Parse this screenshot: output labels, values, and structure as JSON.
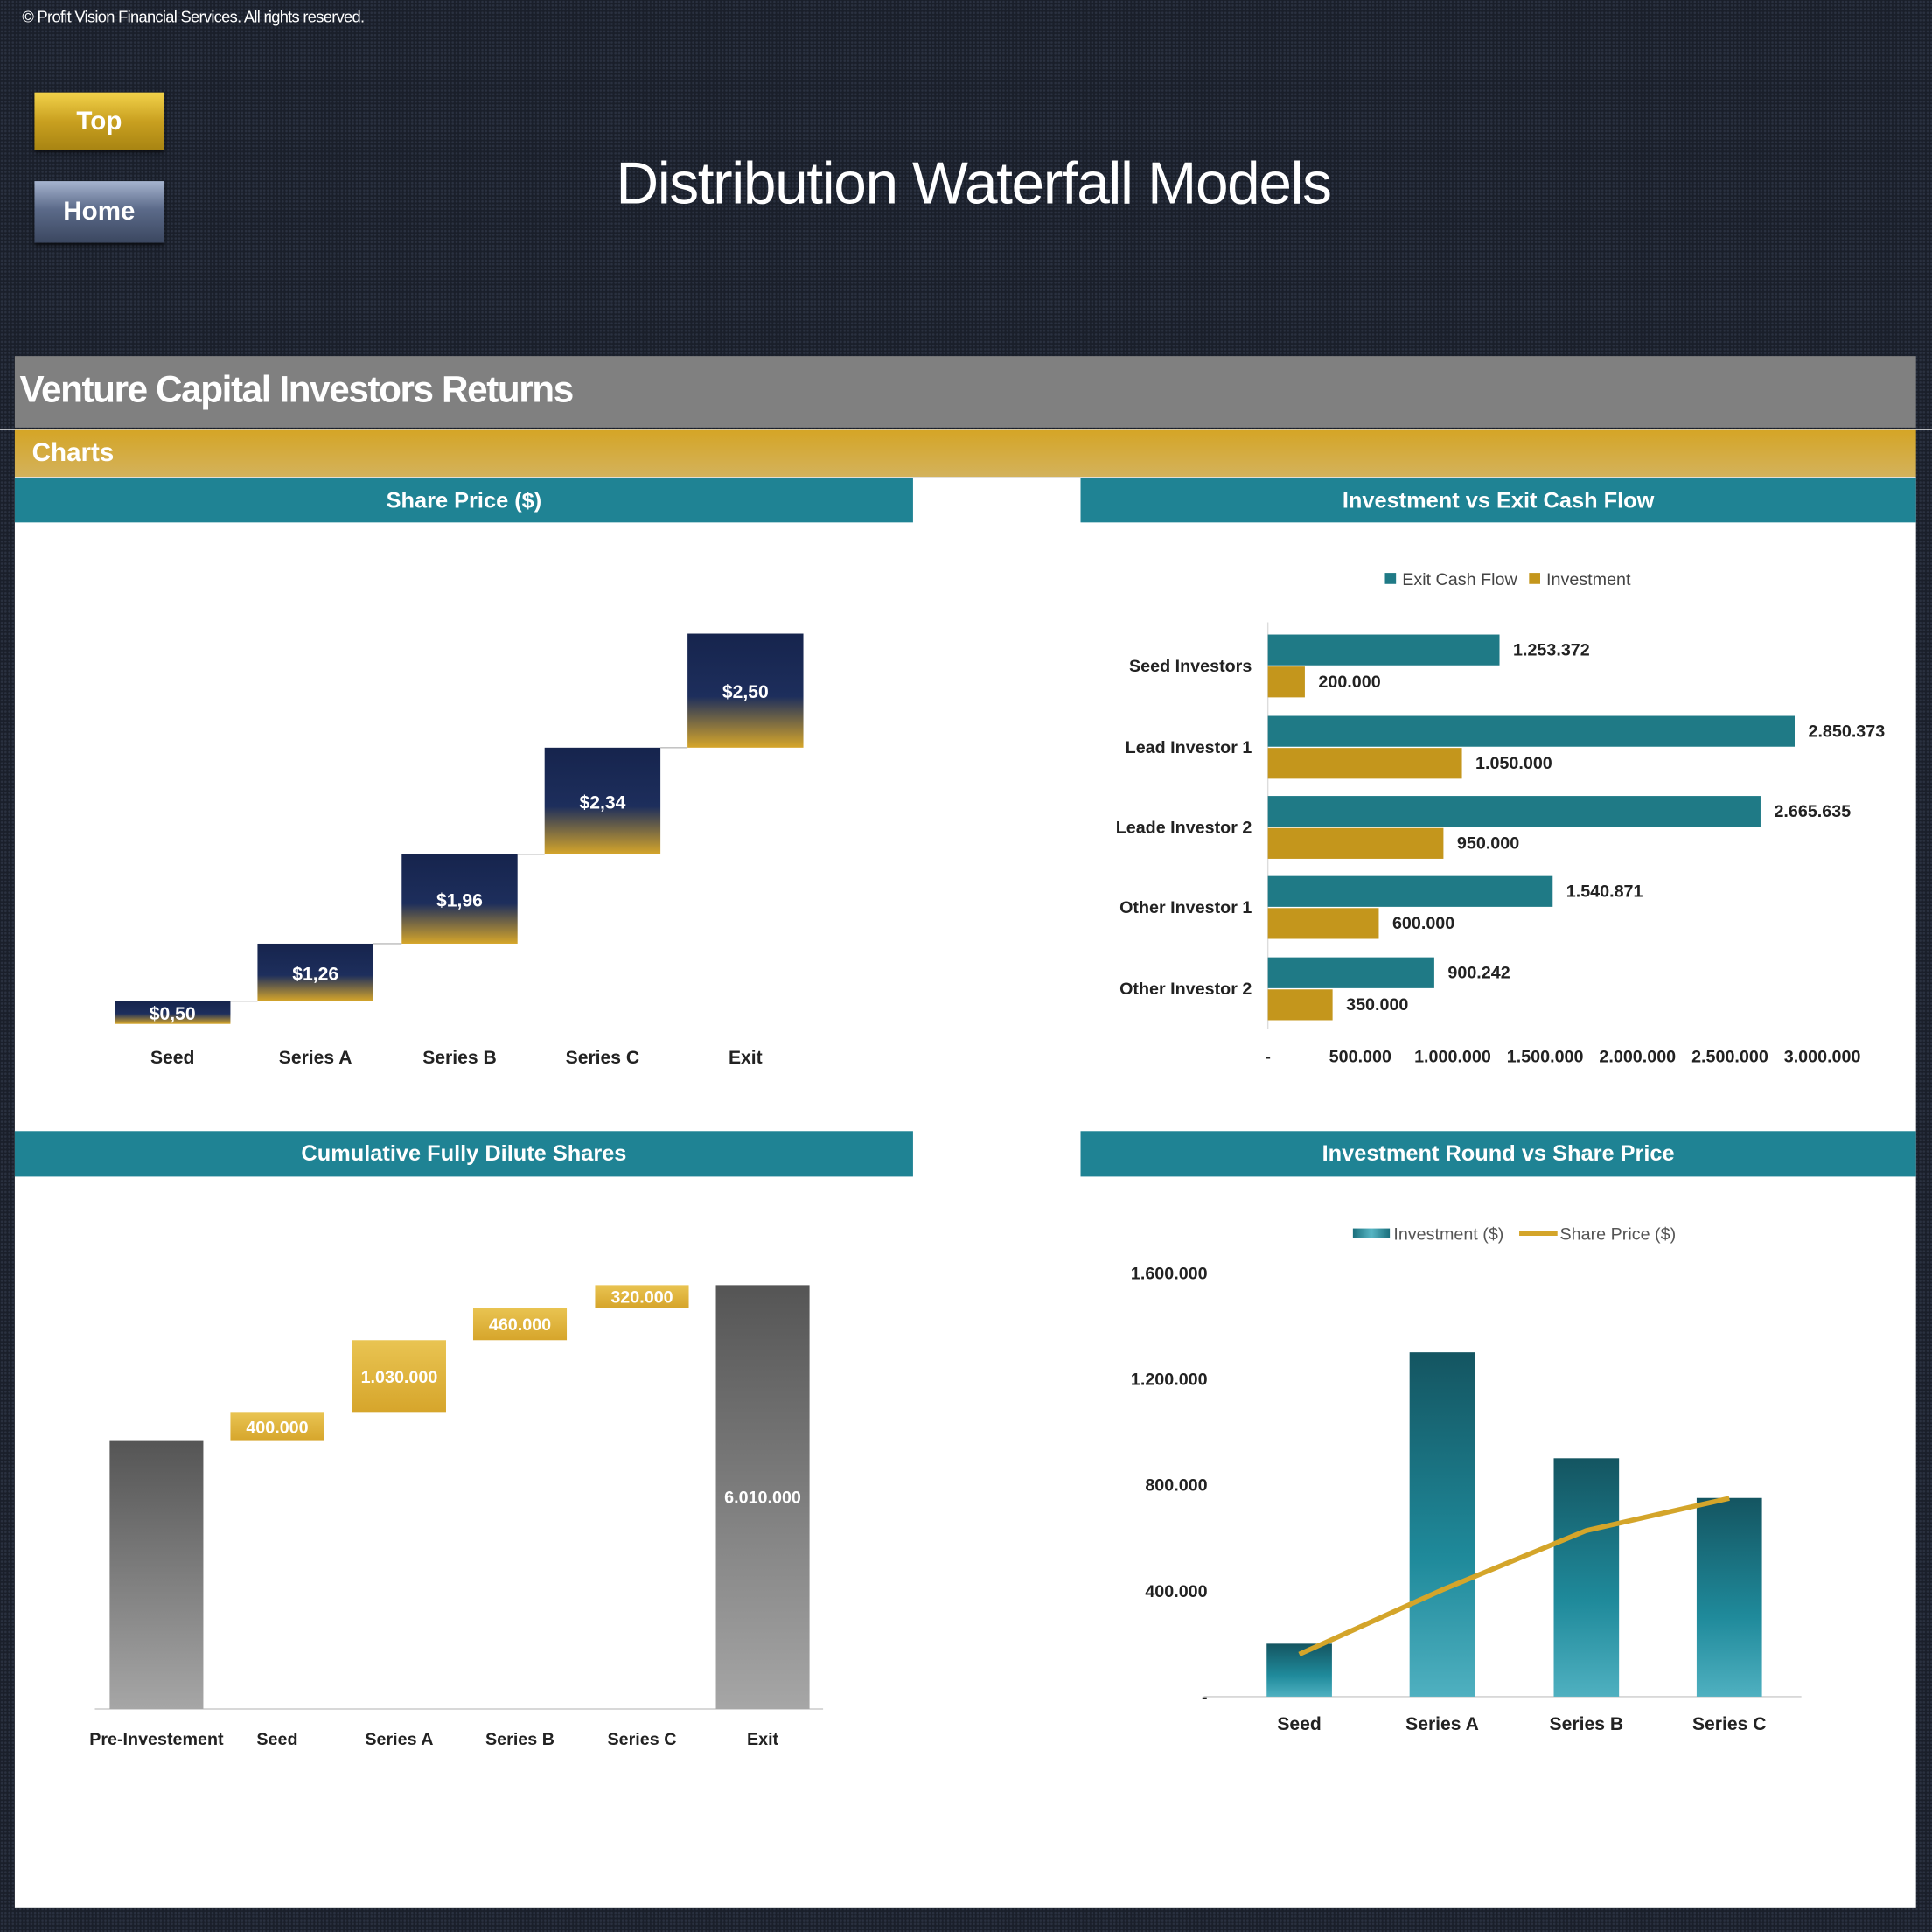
{
  "header": {
    "copyright": "© Profit Vision Financial Services. All rights reserved.",
    "title": "Distribution Waterfall Models",
    "top_button": "Top",
    "home_button": "Home"
  },
  "section": {
    "title": "Venture Capital Investors Returns",
    "subtitle": "Charts"
  },
  "colors": {
    "teal": "#1f8394",
    "gold": "#d4a52a",
    "navy": "#1b2a55",
    "gray": "#808080"
  },
  "chart_data": [
    {
      "type": "waterfall",
      "title": "Share Price ($)",
      "categories": [
        "Seed",
        "Series A",
        "Series B",
        "Series C",
        "Exit"
      ],
      "values": [
        0.5,
        1.26,
        1.96,
        2.34,
        2.5
      ],
      "labels": [
        "$0,50",
        "$1,26",
        "$1,96",
        "$2,34",
        "$2,50"
      ],
      "grid": false
    },
    {
      "type": "bar",
      "orientation": "horizontal",
      "title": "Investment vs Exit Cash Flow",
      "categories": [
        "Seed Investors",
        "Lead Investor 1",
        "Leade Investor 2",
        "Other Investor 1",
        "Other Investor 2"
      ],
      "series": [
        {
          "name": "Exit Cash Flow",
          "color": "#1f7a86",
          "values": [
            1253372,
            2850373,
            2665635,
            1540871,
            900242
          ],
          "labels": [
            "1.253.372",
            "2.850.373",
            "2.665.635",
            "1.540.871",
            "900.242"
          ]
        },
        {
          "name": "Investment",
          "color": "#c4961c",
          "values": [
            200000,
            1050000,
            950000,
            600000,
            350000
          ],
          "labels": [
            "200.000",
            "1.050.000",
            "950.000",
            "600.000",
            "350.000"
          ]
        }
      ],
      "xlim": [
        0,
        3000000
      ],
      "xtick_labels": [
        "-",
        "500.000",
        "1.000.000",
        "1.500.000",
        "2.000.000",
        "2.500.000",
        "3.000.000"
      ],
      "legend": "top",
      "grid": false
    },
    {
      "type": "waterfall",
      "title": "Cumulative Fully Dilute Shares",
      "categories": [
        "Pre-Investement",
        "Seed",
        "Series A",
        "Series B",
        "Series C",
        "Exit"
      ],
      "values": [
        3800000,
        400000,
        1030000,
        460000,
        320000,
        6010000
      ],
      "labels": [
        "",
        "400.000",
        "1.030.000",
        "460.000",
        "320.000",
        "6.010.000"
      ],
      "totals": [
        "Pre-Investement",
        "Exit"
      ],
      "grid": false
    },
    {
      "type": "combo",
      "title": "Investment Round vs Share Price",
      "categories": [
        "Seed",
        "Series A",
        "Series B",
        "Series C"
      ],
      "series": [
        {
          "name": "Investment ($)",
          "type": "bar",
          "color": "#1f8394",
          "values": [
            200000,
            1300000,
            900000,
            750000
          ]
        },
        {
          "name": "Share Price ($)",
          "type": "line",
          "axis": "secondary",
          "color": "#d4a52a",
          "values": [
            0.5,
            1.26,
            1.96,
            2.34
          ]
        }
      ],
      "ylim": [
        0,
        1600000
      ],
      "ytick_labels": [
        "-",
        "400.000",
        "800.000",
        "1.200.000",
        "1.600.000"
      ],
      "y2lim": [
        0,
        5
      ],
      "legend": "top",
      "grid": false
    }
  ]
}
